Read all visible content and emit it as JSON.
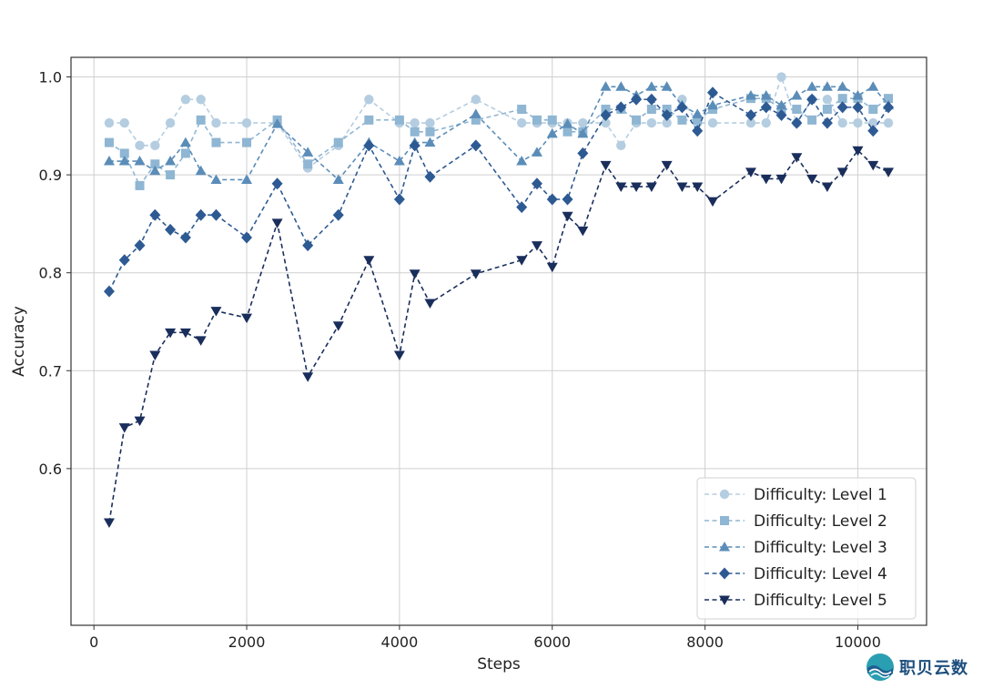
{
  "chart_data": {
    "type": "line",
    "title": "",
    "xlabel": "Steps",
    "ylabel": "Accuracy",
    "xlim": [
      -300,
      10900
    ],
    "ylim": [
      0.44,
      1.02
    ],
    "xticks": [
      0,
      2000,
      4000,
      6000,
      8000,
      10000
    ],
    "xtick_labels": [
      "0",
      "2000",
      "4000",
      "6000",
      "8000",
      "10000"
    ],
    "yticks": [
      0.6,
      0.7,
      0.8,
      0.9,
      1.0
    ],
    "ytick_labels": [
      "0.6",
      "0.7",
      "0.8",
      "0.9",
      "1.0"
    ],
    "grid": true,
    "legend_position": "bottom-right",
    "series": [
      {
        "name": "Difficulty: Level 1",
        "color": "#b5cde0",
        "marker": "circle",
        "x": [
          200,
          400,
          600,
          800,
          1000,
          1200,
          1400,
          1600,
          2000,
          2400,
          2800,
          3200,
          3600,
          4000,
          4200,
          4400,
          5000,
          5600,
          5800,
          6000,
          6200,
          6400,
          6700,
          6900,
          7100,
          7300,
          7500,
          7700,
          7900,
          8100,
          8600,
          8800,
          9000,
          9200,
          9400,
          9600,
          9800,
          10000,
          10200,
          10400
        ],
        "y": [
          0.953,
          0.953,
          0.93,
          0.93,
          0.953,
          0.977,
          0.977,
          0.953,
          0.953,
          0.953,
          0.907,
          0.93,
          0.977,
          0.953,
          0.953,
          0.953,
          0.977,
          0.953,
          0.953,
          0.953,
          0.953,
          0.953,
          0.953,
          0.93,
          0.953,
          0.953,
          0.953,
          0.977,
          0.953,
          0.953,
          0.953,
          0.953,
          1.0,
          0.953,
          0.977,
          0.977,
          0.953,
          0.953,
          0.953,
          0.953
        ]
      },
      {
        "name": "Difficulty: Level 2",
        "color": "#8fb6d3",
        "marker": "square",
        "x": [
          200,
          400,
          600,
          800,
          1000,
          1200,
          1400,
          1600,
          2000,
          2400,
          2800,
          3200,
          3600,
          4000,
          4200,
          4400,
          5000,
          5600,
          5800,
          6000,
          6200,
          6400,
          6700,
          6900,
          7100,
          7300,
          7500,
          7700,
          7900,
          8100,
          8600,
          8800,
          9000,
          9200,
          9400,
          9600,
          9800,
          10000,
          10200,
          10400
        ],
        "y": [
          0.933,
          0.922,
          0.889,
          0.911,
          0.9,
          0.922,
          0.956,
          0.933,
          0.933,
          0.956,
          0.911,
          0.933,
          0.956,
          0.956,
          0.944,
          0.944,
          0.956,
          0.967,
          0.956,
          0.956,
          0.944,
          0.944,
          0.967,
          0.967,
          0.956,
          0.967,
          0.967,
          0.956,
          0.956,
          0.967,
          0.978,
          0.978,
          0.967,
          0.967,
          0.956,
          0.967,
          0.978,
          0.978,
          0.967,
          0.978
        ]
      },
      {
        "name": "Difficulty: Level 3",
        "color": "#5b8db8",
        "marker": "triangle-up",
        "x": [
          200,
          400,
          600,
          800,
          1000,
          1200,
          1400,
          1600,
          2000,
          2400,
          2800,
          3200,
          3600,
          4000,
          4200,
          4400,
          5000,
          5600,
          5800,
          6000,
          6200,
          6400,
          6700,
          6900,
          7100,
          7300,
          7500,
          7700,
          7900,
          8100,
          8600,
          8800,
          9000,
          9200,
          9400,
          9600,
          9800,
          10000,
          10200,
          10400
        ],
        "y": [
          0.914,
          0.914,
          0.914,
          0.904,
          0.914,
          0.933,
          0.904,
          0.895,
          0.895,
          0.952,
          0.923,
          0.895,
          0.933,
          0.914,
          0.933,
          0.933,
          0.962,
          0.914,
          0.923,
          0.942,
          0.952,
          0.942,
          0.99,
          0.99,
          0.981,
          0.99,
          0.99,
          0.971,
          0.962,
          0.971,
          0.981,
          0.981,
          0.971,
          0.981,
          0.99,
          0.99,
          0.99,
          0.981,
          0.99,
          0.971
        ]
      },
      {
        "name": "Difficulty: Level 4",
        "color": "#2e5a93",
        "marker": "diamond",
        "x": [
          200,
          400,
          600,
          800,
          1000,
          1200,
          1400,
          1600,
          2000,
          2400,
          2800,
          3200,
          3600,
          4000,
          4200,
          4400,
          5000,
          5600,
          5800,
          6000,
          6200,
          6400,
          6700,
          6900,
          7100,
          7300,
          7500,
          7700,
          7900,
          8100,
          8600,
          8800,
          9000,
          9200,
          9400,
          9600,
          9800,
          10000,
          10200,
          10400
        ],
        "y": [
          0.781,
          0.813,
          0.828,
          0.859,
          0.844,
          0.836,
          0.859,
          0.859,
          0.836,
          0.891,
          0.828,
          0.859,
          0.93,
          0.875,
          0.93,
          0.898,
          0.93,
          0.867,
          0.891,
          0.875,
          0.875,
          0.922,
          0.961,
          0.969,
          0.977,
          0.977,
          0.961,
          0.969,
          0.945,
          0.984,
          0.961,
          0.969,
          0.961,
          0.953,
          0.977,
          0.953,
          0.969,
          0.969,
          0.945,
          0.969
        ]
      },
      {
        "name": "Difficulty: Level 5",
        "color": "#1a2e5c",
        "marker": "triangle-down",
        "x": [
          200,
          400,
          600,
          800,
          1000,
          1200,
          1400,
          1600,
          2000,
          2400,
          2800,
          3200,
          3600,
          4000,
          4200,
          4400,
          5000,
          5600,
          5800,
          6000,
          6200,
          6400,
          6700,
          6900,
          7100,
          7300,
          7500,
          7700,
          7900,
          8100,
          8600,
          8800,
          9000,
          9200,
          9400,
          9600,
          9800,
          10000,
          10200,
          10400
        ],
        "y": [
          0.545,
          0.642,
          0.649,
          0.716,
          0.739,
          0.739,
          0.731,
          0.761,
          0.754,
          0.851,
          0.694,
          0.746,
          0.813,
          0.716,
          0.799,
          0.769,
          0.799,
          0.813,
          0.828,
          0.806,
          0.858,
          0.843,
          0.91,
          0.888,
          0.888,
          0.888,
          0.91,
          0.888,
          0.888,
          0.873,
          0.903,
          0.896,
          0.896,
          0.918,
          0.896,
          0.888,
          0.903,
          0.925,
          0.91,
          0.903
        ]
      }
    ]
  },
  "watermark": {
    "text": "职贝云数",
    "logo_icon": "globe-wave-logo"
  }
}
